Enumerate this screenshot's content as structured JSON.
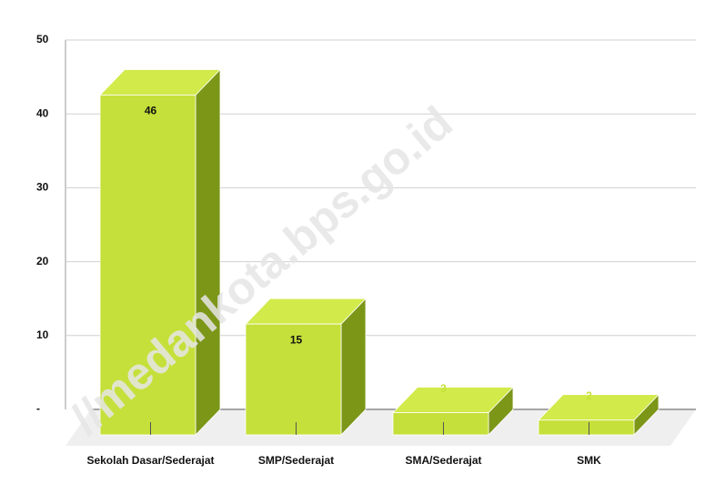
{
  "chart_data": {
    "type": "bar3d",
    "categories": [
      "Sekolah Dasar/Sederajat",
      "SMP/Sederajat",
      "SMA/Sederajat",
      "SMK"
    ],
    "values": [
      46,
      15,
      3,
      2
    ],
    "color": "#c5e03a",
    "ylim": [
      0,
      50
    ],
    "yticks": [
      {
        "value": 0,
        "label": "-"
      },
      10,
      20,
      30,
      40,
      50
    ],
    "grid": true,
    "annotations": [
      "//medankota.bps.go.id"
    ]
  }
}
